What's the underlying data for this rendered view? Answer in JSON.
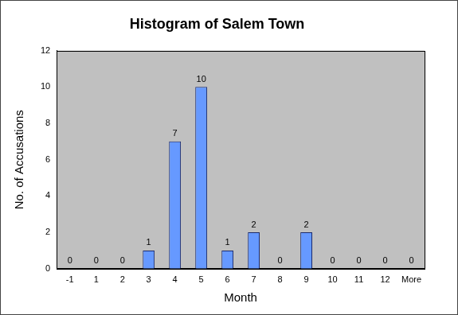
{
  "chart_data": {
    "type": "bar",
    "title": "Histogram of Salem Town",
    "xlabel": "Month",
    "ylabel": "No. of Accusations",
    "categories": [
      "-1",
      "1",
      "2",
      "3",
      "4",
      "5",
      "6",
      "7",
      "8",
      "9",
      "10",
      "11",
      "12",
      "More"
    ],
    "values": [
      0,
      0,
      0,
      1,
      7,
      10,
      1,
      2,
      0,
      2,
      0,
      0,
      0,
      0
    ],
    "color": "#6699ff",
    "ylim": [
      0,
      12
    ],
    "yticks": [
      0,
      2,
      4,
      6,
      8,
      10,
      12
    ],
    "grid": false,
    "data_labels": true
  }
}
